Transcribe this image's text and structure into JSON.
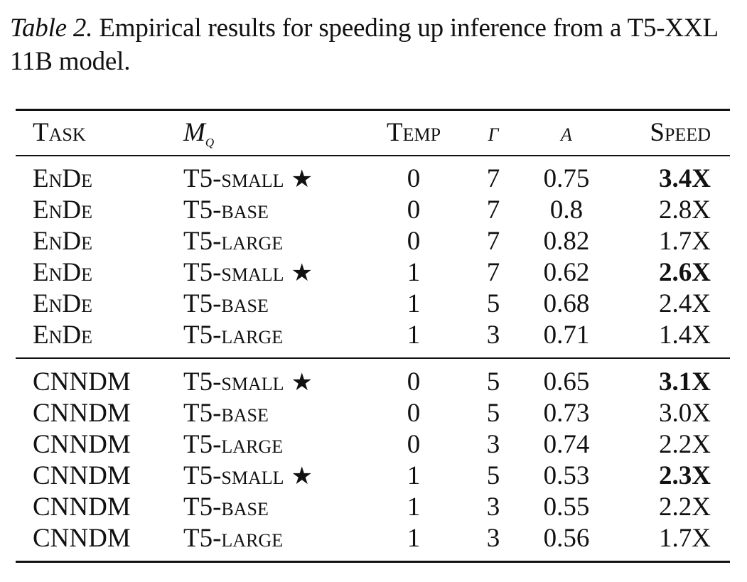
{
  "caption": {
    "label": "Table 2.",
    "text": "Empirical results for speeding up inference from a T5-XXL 11B model."
  },
  "table": {
    "headers": {
      "task": "Task",
      "model_base": "M",
      "model_sub": "q",
      "temp": "Temp",
      "gamma": "γ",
      "alpha": "α",
      "speed": "Speed"
    },
    "star_glyph": "★",
    "rows": [
      {
        "task": "EnDe",
        "model": "T5-small",
        "star": true,
        "temp": "0",
        "gamma": "7",
        "alpha": "0.75",
        "speed": "3.4X",
        "bold": true
      },
      {
        "task": "EnDe",
        "model": "T5-base",
        "star": false,
        "temp": "0",
        "gamma": "7",
        "alpha": "0.8",
        "speed": "2.8X",
        "bold": false
      },
      {
        "task": "EnDe",
        "model": "T5-large",
        "star": false,
        "temp": "0",
        "gamma": "7",
        "alpha": "0.82",
        "speed": "1.7X",
        "bold": false
      },
      {
        "task": "EnDe",
        "model": "T5-small",
        "star": true,
        "temp": "1",
        "gamma": "7",
        "alpha": "0.62",
        "speed": "2.6X",
        "bold": true
      },
      {
        "task": "EnDe",
        "model": "T5-base",
        "star": false,
        "temp": "1",
        "gamma": "5",
        "alpha": "0.68",
        "speed": "2.4X",
        "bold": false
      },
      {
        "task": "EnDe",
        "model": "T5-large",
        "star": false,
        "temp": "1",
        "gamma": "3",
        "alpha": "0.71",
        "speed": "1.4X",
        "bold": false
      },
      {
        "task": "CNNDM",
        "model": "T5-small",
        "star": true,
        "temp": "0",
        "gamma": "5",
        "alpha": "0.65",
        "speed": "3.1X",
        "bold": true
      },
      {
        "task": "CNNDM",
        "model": "T5-base",
        "star": false,
        "temp": "0",
        "gamma": "5",
        "alpha": "0.73",
        "speed": "3.0X",
        "bold": false
      },
      {
        "task": "CNNDM",
        "model": "T5-large",
        "star": false,
        "temp": "0",
        "gamma": "3",
        "alpha": "0.74",
        "speed": "2.2X",
        "bold": false
      },
      {
        "task": "CNNDM",
        "model": "T5-small",
        "star": true,
        "temp": "1",
        "gamma": "5",
        "alpha": "0.53",
        "speed": "2.3X",
        "bold": true
      },
      {
        "task": "CNNDM",
        "model": "T5-base",
        "star": false,
        "temp": "1",
        "gamma": "3",
        "alpha": "0.55",
        "speed": "2.2X",
        "bold": false
      },
      {
        "task": "CNNDM",
        "model": "T5-large",
        "star": false,
        "temp": "1",
        "gamma": "3",
        "alpha": "0.56",
        "speed": "1.7X",
        "bold": false
      }
    ]
  }
}
